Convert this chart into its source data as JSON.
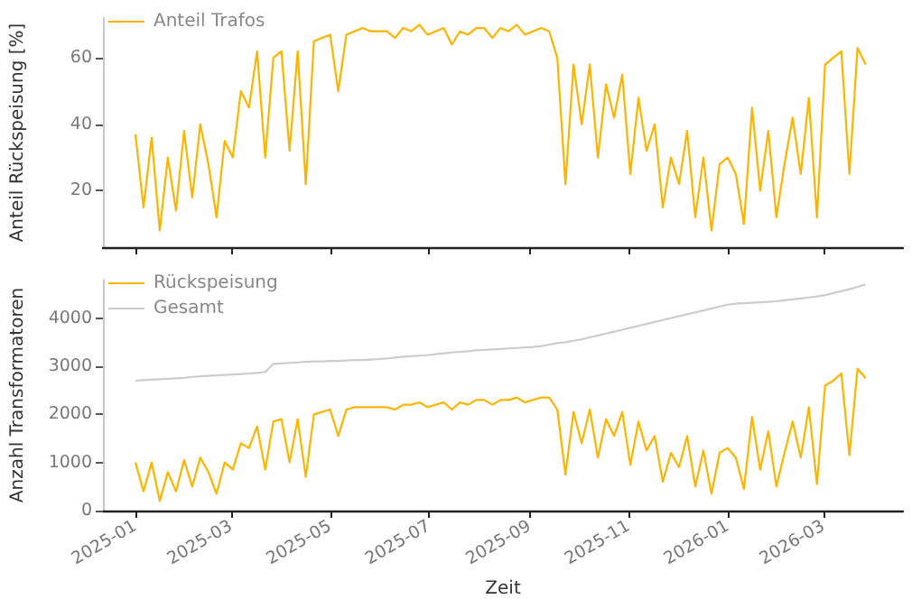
{
  "chart_data": [
    {
      "type": "line",
      "ylabel": "Anteil Rückspeisung [%]",
      "x": [
        "2025-01-01",
        "2025-01-06",
        "2025-01-11",
        "2025-01-16",
        "2025-01-21",
        "2025-01-26",
        "2025-01-31",
        "2025-02-05",
        "2025-02-10",
        "2025-02-15",
        "2025-02-20",
        "2025-02-25",
        "2025-03-02",
        "2025-03-07",
        "2025-03-12",
        "2025-03-17",
        "2025-03-22",
        "2025-03-27",
        "2025-04-01",
        "2025-04-06",
        "2025-04-11",
        "2025-04-16",
        "2025-04-21",
        "2025-04-26",
        "2025-05-01",
        "2025-05-06",
        "2025-05-11",
        "2025-05-16",
        "2025-05-21",
        "2025-05-26",
        "2025-05-31",
        "2025-06-05",
        "2025-06-10",
        "2025-06-15",
        "2025-06-20",
        "2025-06-25",
        "2025-06-30",
        "2025-07-05",
        "2025-07-10",
        "2025-07-15",
        "2025-07-20",
        "2025-07-25",
        "2025-07-30",
        "2025-08-04",
        "2025-08-09",
        "2025-08-14",
        "2025-08-19",
        "2025-08-24",
        "2025-08-29",
        "2025-09-03",
        "2025-09-08",
        "2025-09-13",
        "2025-09-18",
        "2025-09-23",
        "2025-09-28",
        "2025-10-03",
        "2025-10-08",
        "2025-10-13",
        "2025-10-18",
        "2025-10-23",
        "2025-10-28",
        "2025-11-02",
        "2025-11-07",
        "2025-11-12",
        "2025-11-17",
        "2025-11-22",
        "2025-11-27",
        "2025-12-02",
        "2025-12-07",
        "2025-12-12",
        "2025-12-17",
        "2025-12-22",
        "2025-12-27",
        "2026-01-01",
        "2026-01-06",
        "2026-01-11",
        "2026-01-16",
        "2026-01-21",
        "2026-01-26",
        "2026-01-31",
        "2026-02-05",
        "2026-02-10",
        "2026-02-15",
        "2026-02-20",
        "2026-02-25",
        "2026-03-02",
        "2026-03-07",
        "2026-03-12",
        "2026-03-17",
        "2026-03-22",
        "2026-03-27"
      ],
      "series": [
        {
          "name": "Anteil Trafos",
          "color": "#fbb500",
          "values": [
            37,
            15,
            36,
            8,
            30,
            14,
            38,
            18,
            40,
            28,
            12,
            35,
            30,
            50,
            45,
            62,
            30,
            60,
            62,
            32,
            62,
            22,
            65,
            66,
            67,
            50,
            67,
            68,
            69,
            68,
            68,
            68,
            66,
            69,
            68,
            70,
            67,
            68,
            69,
            64,
            68,
            67,
            69,
            69,
            66,
            69,
            68,
            70,
            67,
            68,
            69,
            68,
            60,
            22,
            58,
            40,
            58,
            30,
            52,
            42,
            55,
            25,
            48,
            32,
            40,
            15,
            30,
            22,
            38,
            12,
            30,
            8,
            28,
            30,
            25,
            10,
            45,
            20,
            38,
            12,
            28,
            42,
            25,
            48,
            12,
            58,
            60,
            62,
            25,
            63,
            58
          ]
        }
      ],
      "xlim": [
        "2024-12-12",
        "2026-04-19"
      ],
      "xticks": [
        "2025-01",
        "2025-03",
        "2025-05",
        "2025-07",
        "2025-09",
        "2025-11",
        "2026-01",
        "2026-03"
      ],
      "ylim": [
        3,
        72
      ],
      "yticks": [
        20,
        40,
        60
      ],
      "tick_labels": "y",
      "legend": "top left",
      "grid": false
    },
    {
      "type": "line",
      "xlabel": "Zeit",
      "ylabel": "Anzahl Transformatoren",
      "x": [
        "2025-01-01",
        "2025-01-06",
        "2025-01-11",
        "2025-01-16",
        "2025-01-21",
        "2025-01-26",
        "2025-01-31",
        "2025-02-05",
        "2025-02-10",
        "2025-02-15",
        "2025-02-20",
        "2025-02-25",
        "2025-03-02",
        "2025-03-07",
        "2025-03-12",
        "2025-03-17",
        "2025-03-22",
        "2025-03-27",
        "2025-04-01",
        "2025-04-06",
        "2025-04-11",
        "2025-04-16",
        "2025-04-21",
        "2025-04-26",
        "2025-05-01",
        "2025-05-06",
        "2025-05-11",
        "2025-05-16",
        "2025-05-21",
        "2025-05-26",
        "2025-05-31",
        "2025-06-05",
        "2025-06-10",
        "2025-06-15",
        "2025-06-20",
        "2025-06-25",
        "2025-06-30",
        "2025-07-05",
        "2025-07-10",
        "2025-07-15",
        "2025-07-20",
        "2025-07-25",
        "2025-07-30",
        "2025-08-04",
        "2025-08-09",
        "2025-08-14",
        "2025-08-19",
        "2025-08-24",
        "2025-08-29",
        "2025-09-03",
        "2025-09-08",
        "2025-09-13",
        "2025-09-18",
        "2025-09-23",
        "2025-09-28",
        "2025-10-03",
        "2025-10-08",
        "2025-10-13",
        "2025-10-18",
        "2025-10-23",
        "2025-10-28",
        "2025-11-02",
        "2025-11-07",
        "2025-11-12",
        "2025-11-17",
        "2025-11-22",
        "2025-11-27",
        "2025-12-02",
        "2025-12-07",
        "2025-12-12",
        "2025-12-17",
        "2025-12-22",
        "2025-12-27",
        "2026-01-01",
        "2026-01-06",
        "2026-01-11",
        "2026-01-16",
        "2026-01-21",
        "2026-01-26",
        "2026-01-31",
        "2026-02-05",
        "2026-02-10",
        "2026-02-15",
        "2026-02-20",
        "2026-02-25",
        "2026-03-02",
        "2026-03-07",
        "2026-03-12",
        "2026-03-17",
        "2026-03-22",
        "2026-03-27"
      ],
      "series": [
        {
          "name": "Rückspeisung",
          "color": "#fbb500",
          "values": [
            1000,
            400,
            1000,
            200,
            800,
            400,
            1050,
            500,
            1100,
            800,
            350,
            1000,
            850,
            1400,
            1300,
            1750,
            850,
            1850,
            1900,
            1000,
            1900,
            700,
            2000,
            2050,
            2100,
            1550,
            2100,
            2150,
            2150,
            2150,
            2150,
            2150,
            2100,
            2200,
            2200,
            2250,
            2150,
            2200,
            2250,
            2100,
            2250,
            2200,
            2300,
            2300,
            2200,
            2300,
            2300,
            2350,
            2250,
            2300,
            2350,
            2350,
            2100,
            750,
            2050,
            1400,
            2100,
            1100,
            1900,
            1550,
            2050,
            950,
            1850,
            1250,
            1550,
            600,
            1200,
            900,
            1550,
            500,
            1250,
            350,
            1200,
            1300,
            1100,
            450,
            1950,
            850,
            1650,
            500,
            1200,
            1850,
            1100,
            2150,
            550,
            2600,
            2700,
            2850,
            1150,
            2950,
            2750
          ]
        },
        {
          "name": "Gesamt",
          "color": "#cccccc",
          "values": [
            2700,
            2710,
            2720,
            2730,
            2740,
            2750,
            2760,
            2780,
            2790,
            2800,
            2810,
            2820,
            2830,
            2840,
            2850,
            2860,
            2880,
            3050,
            3060,
            3070,
            3080,
            3090,
            3100,
            3100,
            3110,
            3110,
            3120,
            3130,
            3130,
            3140,
            3150,
            3160,
            3180,
            3200,
            3210,
            3220,
            3230,
            3250,
            3270,
            3290,
            3300,
            3310,
            3330,
            3340,
            3350,
            3360,
            3370,
            3380,
            3390,
            3400,
            3420,
            3450,
            3480,
            3500,
            3530,
            3560,
            3600,
            3640,
            3680,
            3720,
            3760,
            3800,
            3840,
            3880,
            3920,
            3960,
            4000,
            4040,
            4080,
            4120,
            4160,
            4200,
            4240,
            4280,
            4300,
            4310,
            4320,
            4330,
            4340,
            4350,
            4370,
            4390,
            4410,
            4430,
            4450,
            4480,
            4520,
            4560,
            4600,
            4650,
            4700
          ]
        }
      ],
      "xlim": [
        "2024-12-12",
        "2026-04-19"
      ],
      "xticks": [
        "2025-01",
        "2025-03",
        "2025-05",
        "2025-07",
        "2025-09",
        "2025-11",
        "2026-01",
        "2026-03"
      ],
      "ylim": [
        0,
        4800
      ],
      "yticks": [
        0,
        1000,
        2000,
        3000,
        4000
      ],
      "legend": "top left",
      "grid": false
    }
  ]
}
